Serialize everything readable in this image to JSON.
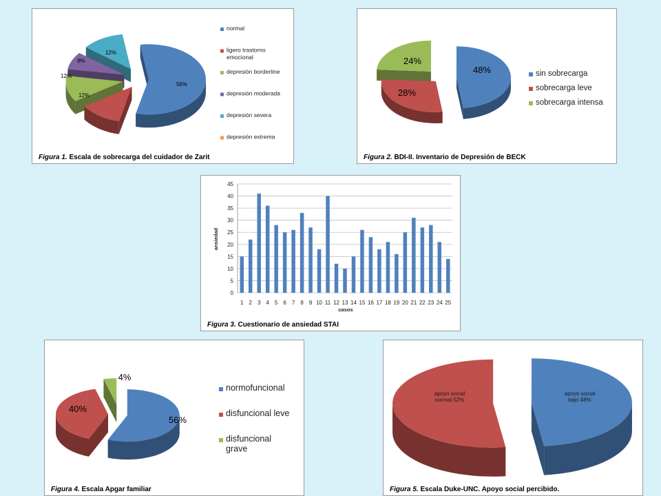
{
  "colors": {
    "blue": "#4f81bd",
    "red": "#c0504d",
    "green": "#9bbb59",
    "purple": "#8064a2",
    "teal": "#4bacc6",
    "orange": "#f79646"
  },
  "chart_data": [
    {
      "type": "pie",
      "caption_fig": "Figura 1.",
      "caption": " Escala  de sobrecarga del cuidador de Zarit",
      "legend": [
        "normal",
        "ligero trastorno emocional",
        "depresión borderline",
        "depresión moderada",
        "depresión severa",
        "depresión extrema"
      ],
      "values": [
        56,
        12,
        12,
        8,
        12,
        0
      ],
      "labels": [
        "56%",
        "12%",
        "12%",
        "8%",
        "12%",
        ""
      ],
      "colors": [
        "#4f81bd",
        "#c0504d",
        "#9bbb59",
        "#8064a2",
        "#4bacc6",
        "#f79646"
      ],
      "legend_position": "right"
    },
    {
      "type": "pie",
      "caption_fig": "Figura 2.",
      "caption": " BDI-II. Inventario de Depresión de BECK",
      "legend": [
        "sin sobrecarga",
        "sobrecarga leve",
        "sobrecarga intensa"
      ],
      "values": [
        48,
        28,
        24
      ],
      "labels": [
        "48%",
        "28%",
        "24%"
      ],
      "colors": [
        "#4f81bd",
        "#c0504d",
        "#9bbb59"
      ],
      "legend_position": "right"
    },
    {
      "type": "bar",
      "caption_fig": "Figura 3.",
      "caption": " Cuestionario  de ansiedad  STAI",
      "categories": [
        "1",
        "2",
        "3",
        "4",
        "5",
        "6",
        "7",
        "8",
        "9",
        "10",
        "11",
        "12",
        "13",
        "14",
        "15",
        "16",
        "17",
        "18",
        "19",
        "20",
        "21",
        "22",
        "23",
        "24",
        "25"
      ],
      "values": [
        15,
        22,
        41,
        36,
        28,
        25,
        26,
        33,
        27,
        18,
        40,
        12,
        10,
        15,
        26,
        23,
        18,
        21,
        16,
        25,
        31,
        27,
        28,
        21,
        14
      ],
      "xlabel": "casos",
      "ylabel": "ansiedad",
      "ylim": [
        0,
        45
      ],
      "yticks": [
        "0",
        "5",
        "10",
        "15",
        "20",
        "25",
        "30",
        "35",
        "40",
        "45"
      ],
      "grid": true,
      "color": "#4f81bd"
    },
    {
      "type": "pie",
      "caption_fig": "Figura 4.",
      "caption": " Escala  Apgar  familiar",
      "legend": [
        "normofuncional",
        "disfuncional leve",
        "disfuncional grave"
      ],
      "values": [
        56,
        40,
        4
      ],
      "labels": [
        "56%",
        "40%",
        "4%"
      ],
      "colors": [
        "#4f81bd",
        "#c0504d",
        "#9bbb59"
      ],
      "legend_position": "right"
    },
    {
      "type": "pie",
      "caption_fig": "Figura 5.",
      "caption": " Escala  Duke-UNC. Apoyo social  percibido.",
      "values": [
        48,
        52
      ],
      "labels": [
        "apoyo social bajo 48%",
        "apoyo social normal 52%"
      ],
      "colors": [
        "#4f81bd",
        "#c0504d"
      ]
    }
  ]
}
